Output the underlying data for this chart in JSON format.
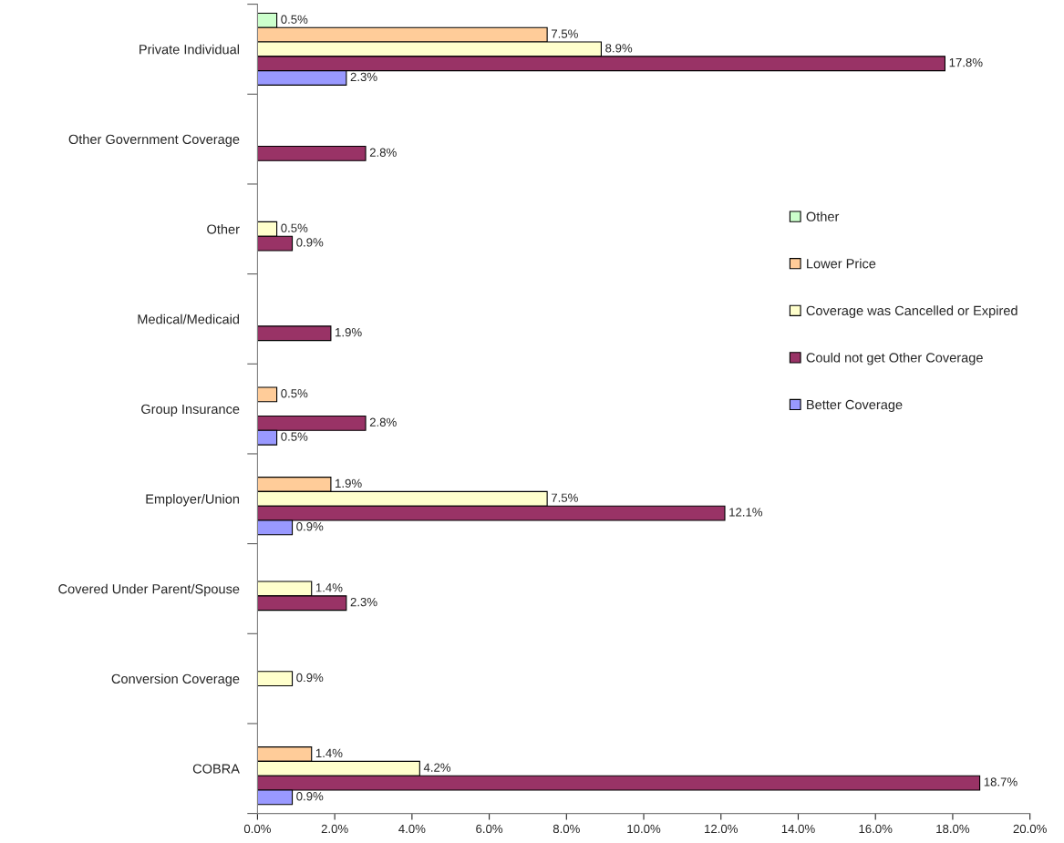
{
  "chart_data": {
    "type": "bar",
    "orientation": "horizontal",
    "categories": [
      "Private Individual",
      "Other Government Coverage",
      "Other",
      "Medical/Medicaid",
      "Group Insurance",
      "Employer/Union",
      "Covered Under Parent/Spouse",
      "Conversion Coverage",
      "COBRA"
    ],
    "series": [
      {
        "name": "Other",
        "color": "#ccffcc",
        "values": [
          0.5,
          null,
          null,
          null,
          null,
          null,
          null,
          null,
          null
        ],
        "value_labels": [
          "0.5%",
          null,
          null,
          null,
          null,
          null,
          null,
          null,
          null
        ]
      },
      {
        "name": "Lower Price",
        "color": "#ffcc99",
        "values": [
          7.5,
          null,
          null,
          null,
          0.5,
          1.9,
          null,
          null,
          1.4
        ],
        "value_labels": [
          "7.5%",
          null,
          null,
          null,
          "0.5%",
          "1.9%",
          null,
          null,
          "1.4%"
        ]
      },
      {
        "name": "Coverage was Cancelled or Expired",
        "color": "#ffffcc",
        "values": [
          8.9,
          null,
          0.5,
          null,
          null,
          7.5,
          1.4,
          0.9,
          4.2
        ],
        "value_labels": [
          "8.9%",
          null,
          "0.5%",
          null,
          null,
          "7.5%",
          "1.4%",
          "0.9%",
          "4.2%"
        ]
      },
      {
        "name": "Could not get Other Coverage",
        "color": "#993366",
        "values": [
          17.8,
          2.8,
          0.9,
          1.9,
          2.8,
          12.1,
          2.3,
          null,
          18.7
        ],
        "value_labels": [
          "17.8%",
          "2.8%",
          "0.9%",
          "1.9%",
          "2.8%",
          "12.1%",
          "2.3%",
          null,
          "18.7%"
        ]
      },
      {
        "name": "Better Coverage",
        "color": "#9999ff",
        "values": [
          2.3,
          null,
          null,
          null,
          0.5,
          0.9,
          null,
          null,
          0.9
        ],
        "value_labels": [
          "2.3%",
          null,
          null,
          null,
          "0.5%",
          "0.9%",
          null,
          null,
          "0.9%"
        ]
      }
    ],
    "xlim": [
      0,
      20
    ],
    "xticks": [
      {
        "value": 0,
        "label": "0.0%"
      },
      {
        "value": 2,
        "label": "2.0%"
      },
      {
        "value": 4,
        "label": "4.0%"
      },
      {
        "value": 6,
        "label": "6.0%"
      },
      {
        "value": 8,
        "label": "8.0%"
      },
      {
        "value": 10,
        "label": "10.0%"
      },
      {
        "value": 12,
        "label": "12.0%"
      },
      {
        "value": 14,
        "label": "14.0%"
      },
      {
        "value": 16,
        "label": "16.0%"
      },
      {
        "value": 18,
        "label": "18.0%"
      },
      {
        "value": 20,
        "label": "20.0%"
      }
    ],
    "grid": false,
    "legend": "right"
  }
}
